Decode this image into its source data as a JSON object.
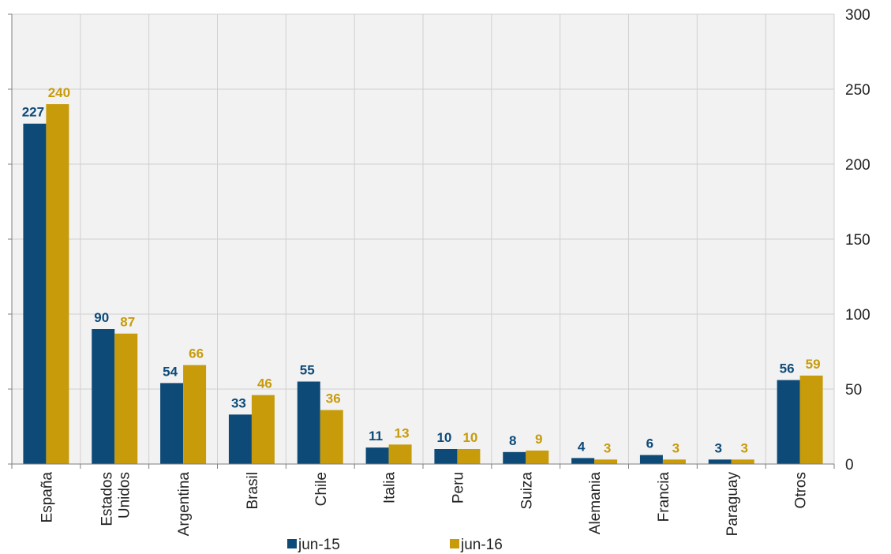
{
  "chart_data": {
    "type": "bar",
    "title": "",
    "xlabel": "",
    "ylabel": "",
    "categories": [
      [
        "España"
      ],
      [
        "Estados",
        "Unidos"
      ],
      [
        "Argentina"
      ],
      [
        "Brasil"
      ],
      [
        "Chile"
      ],
      [
        "Italia"
      ],
      [
        "Peru"
      ],
      [
        "Suiza"
      ],
      [
        "Alemania"
      ],
      [
        "Francia"
      ],
      [
        "Paraguay"
      ],
      [
        "Otros"
      ]
    ],
    "series": [
      {
        "name": "jun-15",
        "color": "#0d4a78",
        "values": [
          227,
          90,
          54,
          33,
          55,
          11,
          10,
          8,
          4,
          6,
          3,
          56
        ]
      },
      {
        "name": "jun-16",
        "color": "#c79b0a",
        "values": [
          240,
          87,
          66,
          46,
          36,
          13,
          10,
          9,
          3,
          3,
          3,
          59
        ]
      }
    ],
    "ylim": [
      0,
      300
    ],
    "yticks": [
      0,
      50,
      100,
      150,
      200,
      250,
      300
    ],
    "y_axis_side": "right",
    "grid": true,
    "legend_position": "bottom",
    "background_color": "#f2f2f2",
    "grid_color": "#d0d0d0"
  }
}
